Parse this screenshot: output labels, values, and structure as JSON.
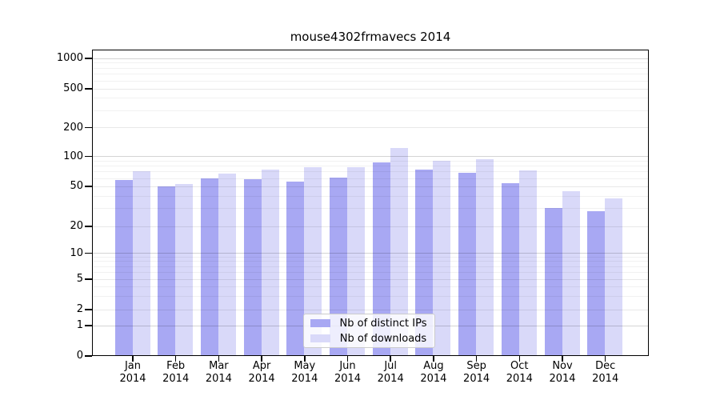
{
  "title": "mouse4302frmavecs 2014",
  "chart_data": {
    "type": "bar",
    "title": "mouse4302frmavecs 2014",
    "xlabel": "",
    "ylabel": "",
    "scale": "symlog",
    "grid": true,
    "legend_position": "lower center",
    "year": "2014",
    "categories": [
      "Jan",
      "Feb",
      "Mar",
      "Apr",
      "May",
      "Jun",
      "Jul",
      "Aug",
      "Sep",
      "Oct",
      "Nov",
      "Dec"
    ],
    "y_ticks": [
      0,
      1,
      2,
      5,
      10,
      20,
      50,
      100,
      200,
      500,
      1000
    ],
    "ylim": [
      0,
      1000
    ],
    "series": [
      {
        "name": "Nb of distinct IPs",
        "color": "#a8a8f3",
        "values": [
          57,
          49,
          59,
          58,
          55,
          60,
          86,
          72,
          67,
          53,
          30,
          28
        ]
      },
      {
        "name": "Nb of downloads",
        "color": "#d9d9f9",
        "values": [
          70,
          52,
          66,
          72,
          77,
          77,
          120,
          89,
          92,
          71,
          44,
          37
        ]
      }
    ]
  }
}
